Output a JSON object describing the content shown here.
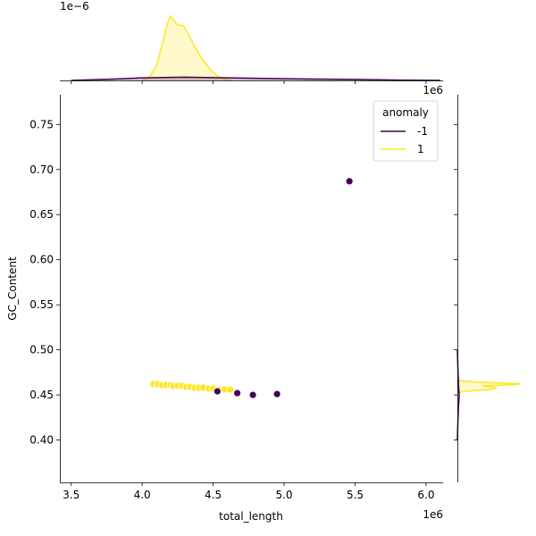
{
  "chart_data": {
    "type": "scatter",
    "title": "",
    "xlabel": "total_length",
    "ylabel": "GC_Content",
    "x_offset_label": "1e6",
    "y_offset_label": "",
    "xlim": [
      3.42,
      6.12
    ],
    "ylim": [
      0.353,
      0.783
    ],
    "x_ticks": [
      3.5,
      4.0,
      4.5,
      5.0,
      5.5,
      6.0
    ],
    "x_tick_labels": [
      "3.5",
      "4.0",
      "4.5",
      "5.0",
      "5.5",
      "6.0"
    ],
    "y_ticks": [
      0.4,
      0.45,
      0.5,
      0.55,
      0.6,
      0.65,
      0.7,
      0.75
    ],
    "y_tick_labels": [
      "0.40",
      "0.45",
      "0.50",
      "0.55",
      "0.60",
      "0.65",
      "0.70",
      "0.75"
    ],
    "grid": false,
    "legend": {
      "title": "anomaly",
      "position": "top-right",
      "entries": [
        {
          "label": "-1",
          "color": "#440154"
        },
        {
          "label": "1",
          "color": "#fde725"
        }
      ]
    },
    "series": [
      {
        "name": "-1",
        "color": "#440154",
        "points": [
          {
            "x": 5.46,
            "y": 0.687
          },
          {
            "x": 4.95,
            "y": 0.451
          },
          {
            "x": 4.78,
            "y": 0.45
          },
          {
            "x": 4.67,
            "y": 0.452
          },
          {
            "x": 4.53,
            "y": 0.454
          }
        ]
      },
      {
        "name": "1",
        "color": "#fde725",
        "points": [
          {
            "x": 4.08,
            "y": 0.462
          },
          {
            "x": 4.11,
            "y": 0.462
          },
          {
            "x": 4.14,
            "y": 0.461
          },
          {
            "x": 4.17,
            "y": 0.461
          },
          {
            "x": 4.2,
            "y": 0.461
          },
          {
            "x": 4.22,
            "y": 0.46
          },
          {
            "x": 4.25,
            "y": 0.46
          },
          {
            "x": 4.28,
            "y": 0.46
          },
          {
            "x": 4.31,
            "y": 0.459
          },
          {
            "x": 4.34,
            "y": 0.459
          },
          {
            "x": 4.37,
            "y": 0.458
          },
          {
            "x": 4.4,
            "y": 0.458
          },
          {
            "x": 4.43,
            "y": 0.458
          },
          {
            "x": 4.47,
            "y": 0.457
          },
          {
            "x": 4.5,
            "y": 0.457
          },
          {
            "x": 4.54,
            "y": 0.456
          },
          {
            "x": 4.58,
            "y": 0.456
          },
          {
            "x": 4.62,
            "y": 0.456
          }
        ]
      }
    ],
    "top_marginal": {
      "type": "kde",
      "offset_label": "1e−6",
      "series": [
        {
          "name": "1",
          "color": "#fde725",
          "x": [
            4.0,
            4.05,
            4.1,
            4.14,
            4.18,
            4.2,
            4.22,
            4.25,
            4.28,
            4.3,
            4.33,
            4.37,
            4.42,
            4.48,
            4.53,
            4.58,
            4.63
          ],
          "density": [
            0.0,
            0.05,
            0.22,
            0.55,
            0.9,
            1.0,
            0.94,
            0.86,
            0.86,
            0.82,
            0.7,
            0.52,
            0.34,
            0.17,
            0.07,
            0.02,
            0.0
          ]
        },
        {
          "name": "-1",
          "color": "#440154",
          "x": [
            3.5,
            3.8,
            4.0,
            4.3,
            4.6,
            4.9,
            5.2,
            5.5,
            5.8,
            6.1
          ],
          "density": [
            0.0,
            0.02,
            0.04,
            0.05,
            0.04,
            0.03,
            0.02,
            0.015,
            0.005,
            0.0
          ]
        }
      ]
    },
    "right_marginal": {
      "type": "kde",
      "series": [
        {
          "name": "1",
          "color": "#fde725",
          "y": [
            0.452,
            0.454,
            0.456,
            0.458,
            0.46,
            0.4615,
            0.4625,
            0.464,
            0.466
          ],
          "density": [
            0.0,
            0.12,
            0.55,
            0.62,
            0.4,
            0.95,
            1.0,
            0.4,
            0.0
          ]
        },
        {
          "name": "-1",
          "color": "#440154",
          "y": [
            0.4,
            0.42,
            0.44,
            0.45,
            0.46,
            0.48,
            0.5
          ],
          "density": [
            0.0,
            0.008,
            0.02,
            0.03,
            0.02,
            0.008,
            0.0
          ]
        }
      ]
    }
  }
}
